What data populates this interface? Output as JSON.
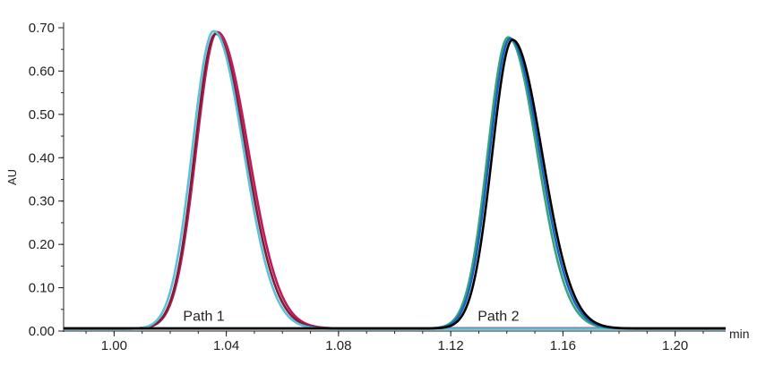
{
  "chart_data": {
    "type": "line",
    "xlabel": "min",
    "ylabel": "AU",
    "xlim": [
      0.982,
      1.218
    ],
    "ylim": [
      0.0,
      0.7
    ],
    "x_ticks": [
      1.0,
      1.04,
      1.08,
      1.12,
      1.16,
      1.2
    ],
    "x_tick_labels": [
      "1.00",
      "1.04",
      "1.08",
      "1.12",
      "1.16",
      "1.20"
    ],
    "y_ticks": [
      0.0,
      0.1,
      0.2,
      0.3,
      0.4,
      0.5,
      0.6,
      0.7
    ],
    "y_tick_labels": [
      "0.00",
      "0.10",
      "0.20",
      "0.30",
      "0.40",
      "0.50",
      "0.60",
      "0.70"
    ],
    "grid": false,
    "legend": "none",
    "annotations": [
      {
        "text": "Path 1",
        "x": 1.032,
        "y": 0.02
      },
      {
        "text": "Path 2",
        "x": 1.137,
        "y": 0.02
      }
    ],
    "series": [
      {
        "group": "Path 1",
        "color": "#c2185b",
        "peak_x": 1.0368,
        "peak_y": 0.69,
        "sigma": 0.0075,
        "tau": 0.0035,
        "baseline": 0.006
      },
      {
        "group": "Path 1",
        "color": "#7b1f3a",
        "peak_x": 1.0362,
        "peak_y": 0.686,
        "sigma": 0.0074,
        "tau": 0.0034,
        "baseline": 0.006
      },
      {
        "group": "Path 1",
        "color": "#5bc0d9",
        "peak_x": 1.0355,
        "peak_y": 0.692,
        "sigma": 0.0076,
        "tau": 0.003,
        "baseline": 0.005
      },
      {
        "group": "Path 2",
        "color": "#3aa37a",
        "peak_x": 1.1405,
        "peak_y": 0.678,
        "sigma": 0.0073,
        "tau": 0.003,
        "baseline": 0.006
      },
      {
        "group": "Path 2",
        "color": "#1565c0",
        "peak_x": 1.1412,
        "peak_y": 0.675,
        "sigma": 0.0073,
        "tau": 0.0032,
        "baseline": 0.006
      },
      {
        "group": "Path 2",
        "color": "#000000",
        "peak_x": 1.142,
        "peak_y": 0.672,
        "sigma": 0.0072,
        "tau": 0.0034,
        "baseline": 0.006
      }
    ]
  }
}
